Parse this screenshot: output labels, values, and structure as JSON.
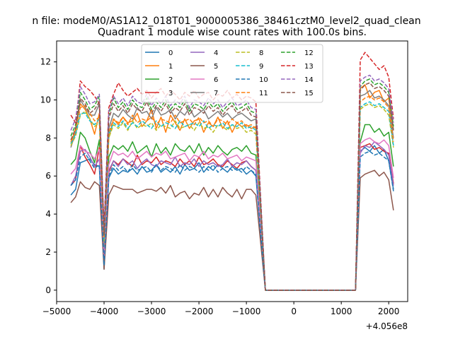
{
  "figure": {
    "suptitle": "n file: modeM0/AS1A12_018T01_9000005386_38461cztM0_level2_quad_clean",
    "offset_text": "+4.056e8"
  },
  "chart_data": {
    "type": "line",
    "title": "Quadrant 1 module wise count rates with 100.0s bins.",
    "xlabel": "",
    "ylabel": "",
    "x_offset": 405600000,
    "xlim": [
      -5000,
      2400
    ],
    "ylim": [
      -0.6,
      13.1
    ],
    "xticks": [
      -5000,
      -4000,
      -3000,
      -2000,
      -1000,
      0,
      1000,
      2000
    ],
    "xtick_labels": [
      "−5000",
      "−4000",
      "−3000",
      "−2000",
      "−1000",
      "0",
      "1000",
      "2000"
    ],
    "yticks": [
      0,
      2,
      4,
      6,
      8,
      10,
      12
    ],
    "ytick_labels": [
      "0",
      "2",
      "4",
      "6",
      "8",
      "10",
      "12"
    ],
    "grid": false,
    "legend_position": "top-center",
    "legend_columns": 4,
    "x": [
      -4700,
      -4600,
      -4500,
      -4400,
      -4300,
      -4200,
      -4100,
      -4000,
      -3900,
      -3800,
      -3700,
      -3600,
      -3500,
      -3400,
      -3300,
      -3200,
      -3100,
      -3000,
      -2900,
      -2800,
      -2700,
      -2600,
      -2500,
      -2400,
      -2300,
      -2200,
      -2100,
      -2000,
      -1900,
      -1800,
      -1700,
      -1600,
      -1500,
      -1400,
      -1300,
      -1200,
      -1100,
      -1000,
      -900,
      -800,
      -700,
      -600,
      -500,
      -400,
      -300,
      -200,
      -100,
      0,
      100,
      200,
      300,
      400,
      500,
      600,
      700,
      800,
      900,
      1000,
      1100,
      1200,
      1300,
      1400,
      1500,
      1600,
      1700,
      1800,
      1900,
      2000,
      2100
    ],
    "series": [
      {
        "name": "0",
        "color": "#1f77b4",
        "dash": "solid",
        "values": [
          5.0,
          5.3,
          6.7,
          6.8,
          6.9,
          6.6,
          6.5,
          1.1,
          5.9,
          6.4,
          6.1,
          6.3,
          6.2,
          6.4,
          6.1,
          6.5,
          6.2,
          6.3,
          6.6,
          6.2,
          6.4,
          6.2,
          6.5,
          6.1,
          6.6,
          6.3,
          6.4,
          6.7,
          6.2,
          6.5,
          6.3,
          6.6,
          6.4,
          6.2,
          6.5,
          6.3,
          6.4,
          6.1,
          6.3,
          6.0,
          3.0,
          0,
          0,
          0,
          0,
          0,
          0,
          0,
          0,
          0,
          0,
          0,
          0,
          0,
          0,
          0,
          0,
          0,
          0,
          0,
          0,
          7.3,
          7.5,
          7.3,
          7.6,
          7.2,
          7.4,
          6.8,
          5.3
        ]
      },
      {
        "name": "1",
        "color": "#ff7f0e",
        "dash": "solid",
        "values": [
          7.7,
          8.5,
          9.8,
          9.5,
          9.0,
          8.2,
          9.3,
          2.7,
          8.0,
          9.0,
          8.7,
          9.1,
          8.8,
          8.9,
          9.3,
          8.6,
          8.9,
          9.5,
          8.5,
          9.1,
          8.3,
          9.2,
          8.8,
          8.4,
          9.0,
          8.5,
          8.9,
          9.0,
          8.3,
          8.8,
          8.6,
          9.1,
          8.5,
          8.9,
          8.3,
          8.8,
          8.6,
          8.7,
          8.5,
          8.6,
          4.4,
          0,
          0,
          0,
          0,
          0,
          0,
          0,
          0,
          0,
          0,
          0,
          0,
          0,
          0,
          0,
          0,
          0,
          0,
          0,
          0,
          10.6,
          10.8,
          10.1,
          10.4,
          10.5,
          9.9,
          10.1,
          8.4
        ]
      },
      {
        "name": "2",
        "color": "#2ca02c",
        "dash": "solid",
        "values": [
          6.6,
          6.9,
          8.3,
          8.0,
          7.3,
          6.7,
          7.9,
          1.9,
          7.0,
          7.6,
          7.4,
          7.6,
          7.3,
          7.8,
          7.2,
          7.4,
          7.6,
          7.0,
          7.7,
          7.2,
          7.5,
          7.1,
          7.7,
          7.4,
          7.3,
          7.6,
          7.2,
          7.7,
          7.1,
          7.5,
          7.2,
          7.6,
          7.3,
          7.1,
          7.4,
          7.5,
          7.3,
          7.6,
          7.2,
          7.1,
          3.6,
          0,
          0,
          0,
          0,
          0,
          0,
          0,
          0,
          0,
          0,
          0,
          0,
          0,
          0,
          0,
          0,
          0,
          0,
          0,
          0,
          7.8,
          8.7,
          8.7,
          8.3,
          8.5,
          8.1,
          8.3,
          6.5
        ]
      },
      {
        "name": "3",
        "color": "#d62728",
        "dash": "solid",
        "values": [
          5.5,
          5.8,
          7.6,
          7.0,
          6.6,
          6.1,
          7.5,
          1.6,
          6.2,
          6.8,
          6.6,
          6.9,
          6.7,
          6.5,
          7.1,
          6.6,
          6.8,
          6.7,
          7.0,
          6.6,
          6.8,
          6.7,
          6.5,
          6.9,
          6.6,
          6.8,
          6.5,
          7.0,
          6.6,
          6.7,
          6.9,
          6.6,
          6.5,
          6.8,
          6.6,
          6.4,
          6.7,
          6.8,
          6.5,
          6.3,
          3.2,
          0,
          0,
          0,
          0,
          0,
          0,
          0,
          0,
          0,
          0,
          0,
          0,
          0,
          0,
          0,
          0,
          0,
          0,
          0,
          0,
          7.5,
          7.6,
          7.7,
          7.4,
          7.5,
          7.3,
          7.2,
          5.6
        ]
      },
      {
        "name": "4",
        "color": "#9467bd",
        "dash": "solid",
        "values": [
          5.5,
          6.0,
          7.3,
          7.4,
          7.0,
          6.5,
          6.9,
          1.5,
          6.3,
          6.8,
          6.5,
          6.9,
          6.6,
          6.8,
          6.4,
          6.7,
          6.9,
          6.6,
          6.5,
          6.8,
          6.7,
          6.6,
          7.0,
          6.5,
          6.7,
          6.6,
          6.9,
          6.5,
          6.8,
          6.6,
          6.7,
          6.5,
          6.6,
          6.9,
          6.5,
          6.7,
          6.6,
          6.8,
          6.5,
          6.3,
          3.1,
          0,
          0,
          0,
          0,
          0,
          0,
          0,
          0,
          0,
          0,
          0,
          0,
          0,
          0,
          0,
          0,
          0,
          0,
          0,
          0,
          7.2,
          7.6,
          7.5,
          7.8,
          7.6,
          7.4,
          7.1,
          5.5
        ]
      },
      {
        "name": "5",
        "color": "#8c564b",
        "dash": "solid",
        "values": [
          4.6,
          4.9,
          5.7,
          5.4,
          5.3,
          5.7,
          5.5,
          1.1,
          5.0,
          5.5,
          5.4,
          5.3,
          5.3,
          5.3,
          5.1,
          5.2,
          5.3,
          5.3,
          5.2,
          5.4,
          5.1,
          5.5,
          4.9,
          5.1,
          5.2,
          4.8,
          5.1,
          5.0,
          5.4,
          4.9,
          5.3,
          4.9,
          5.4,
          5.1,
          4.9,
          5.3,
          4.8,
          5.3,
          5.3,
          5.0,
          2.5,
          0,
          0,
          0,
          0,
          0,
          0,
          0,
          0,
          0,
          0,
          0,
          0,
          0,
          0,
          0,
          0,
          0,
          0,
          0,
          0,
          5.9,
          6.1,
          6.2,
          6.3,
          6.0,
          6.2,
          5.8,
          4.2
        ]
      },
      {
        "name": "6",
        "color": "#e377c2",
        "dash": "solid",
        "values": [
          6.1,
          6.4,
          7.6,
          7.3,
          7.2,
          6.9,
          7.4,
          1.8,
          6.6,
          7.3,
          7.1,
          7.2,
          7.0,
          7.3,
          6.9,
          7.1,
          7.3,
          7.0,
          7.2,
          7.1,
          7.3,
          6.9,
          7.0,
          7.1,
          7.2,
          6.8,
          7.1,
          7.0,
          7.3,
          6.9,
          7.1,
          7.0,
          7.2,
          6.9,
          7.0,
          7.1,
          6.8,
          7.0,
          6.9,
          6.8,
          3.4,
          0,
          0,
          0,
          0,
          0,
          0,
          0,
          0,
          0,
          0,
          0,
          0,
          0,
          0,
          0,
          0,
          0,
          0,
          0,
          0,
          7.7,
          7.9,
          8.0,
          7.8,
          7.7,
          7.9,
          7.6,
          5.9
        ]
      },
      {
        "name": "7",
        "color": "#7f7f7f",
        "dash": "solid",
        "values": [
          7.5,
          8.3,
          10.0,
          9.6,
          9.2,
          9.2,
          9.8,
          2.3,
          8.5,
          9.3,
          9.1,
          9.5,
          9.2,
          9.0,
          9.6,
          9.3,
          9.4,
          9.0,
          9.6,
          9.2,
          9.3,
          9.5,
          9.0,
          9.4,
          9.2,
          9.6,
          9.1,
          9.3,
          9.5,
          9.0,
          9.2,
          9.4,
          9.1,
          9.3,
          9.0,
          9.2,
          9.3,
          9.1,
          8.9,
          9.0,
          4.5,
          0,
          0,
          0,
          0,
          0,
          0,
          0,
          0,
          0,
          0,
          0,
          0,
          0,
          0,
          0,
          0,
          0,
          0,
          0,
          0,
          10.2,
          10.3,
          10.5,
          10.1,
          10.2,
          10.0,
          9.7,
          8.0
        ]
      },
      {
        "name": "8",
        "color": "#bcbd22",
        "dash": "dashed",
        "values": [
          7.6,
          8.1,
          9.2,
          9.4,
          9.0,
          8.6,
          8.8,
          2.6,
          8.0,
          8.7,
          8.5,
          8.8,
          8.4,
          8.9,
          8.5,
          8.7,
          8.6,
          8.8,
          8.4,
          8.7,
          8.6,
          8.5,
          8.9,
          8.5,
          8.6,
          8.7,
          8.4,
          8.8,
          8.5,
          8.6,
          8.3,
          8.7,
          8.6,
          8.4,
          8.7,
          8.5,
          8.6,
          8.3,
          8.4,
          8.2,
          4.1,
          0,
          0,
          0,
          0,
          0,
          0,
          0,
          0,
          0,
          0,
          0,
          0,
          0,
          0,
          0,
          0,
          0,
          0,
          0,
          0,
          9.5,
          9.7,
          9.8,
          9.6,
          9.7,
          9.5,
          9.2,
          7.5
        ]
      },
      {
        "name": "9",
        "color": "#17becf",
        "dash": "dashed",
        "values": [
          7.7,
          8.2,
          9.3,
          9.3,
          8.9,
          8.7,
          9.0,
          2.7,
          8.2,
          8.8,
          8.6,
          8.9,
          8.5,
          8.8,
          8.6,
          8.9,
          8.7,
          8.5,
          8.9,
          8.6,
          8.8,
          8.7,
          8.5,
          8.9,
          8.6,
          8.7,
          8.8,
          8.6,
          8.9,
          8.5,
          8.7,
          8.6,
          8.8,
          8.5,
          8.7,
          8.6,
          8.8,
          8.5,
          8.6,
          8.4,
          4.2,
          0,
          0,
          0,
          0,
          0,
          0,
          0,
          0,
          0,
          0,
          0,
          0,
          0,
          0,
          0,
          0,
          0,
          0,
          0,
          0,
          9.6,
          9.8,
          9.9,
          9.7,
          9.8,
          9.6,
          9.4,
          7.6
        ]
      },
      {
        "name": "10",
        "color": "#1f77b4",
        "dash": "dashed",
        "values": [
          5.5,
          5.8,
          7.0,
          7.2,
          6.8,
          6.4,
          6.6,
          1.3,
          6.0,
          6.6,
          6.3,
          6.5,
          6.2,
          6.6,
          6.3,
          6.4,
          6.5,
          6.2,
          6.6,
          6.3,
          6.5,
          6.4,
          6.2,
          6.6,
          6.3,
          6.5,
          6.4,
          6.2,
          6.5,
          6.3,
          6.6,
          6.2,
          6.4,
          6.5,
          6.3,
          6.4,
          6.2,
          6.5,
          6.3,
          6.1,
          3.0,
          0,
          0,
          0,
          0,
          0,
          0,
          0,
          0,
          0,
          0,
          0,
          0,
          0,
          0,
          0,
          0,
          0,
          0,
          0,
          0,
          7.0,
          7.2,
          7.3,
          7.1,
          7.2,
          7.0,
          6.8,
          5.2
        ]
      },
      {
        "name": "11",
        "color": "#ff7f0e",
        "dash": "dashed",
        "values": [
          7.8,
          8.4,
          9.6,
          9.7,
          9.3,
          8.9,
          9.1,
          2.8,
          8.3,
          9.0,
          8.8,
          9.1,
          8.7,
          9.2,
          8.8,
          9.0,
          8.9,
          9.1,
          8.7,
          9.0,
          8.9,
          8.8,
          9.2,
          8.8,
          8.9,
          9.0,
          8.7,
          9.1,
          8.8,
          8.9,
          8.6,
          9.0,
          8.9,
          8.7,
          9.0,
          8.8,
          8.9,
          8.6,
          8.7,
          8.5,
          4.3,
          0,
          0,
          0,
          0,
          0,
          0,
          0,
          0,
          0,
          0,
          0,
          0,
          0,
          0,
          0,
          0,
          0,
          0,
          0,
          0,
          9.9,
          10.1,
          10.2,
          10.0,
          10.1,
          9.9,
          9.6,
          7.8
        ]
      },
      {
        "name": "12",
        "color": "#2ca02c",
        "dash": "dashed",
        "values": [
          8.1,
          8.7,
          10.4,
          10.0,
          9.5,
          9.7,
          10.2,
          3.0,
          9.2,
          10.1,
          9.6,
          9.9,
          9.5,
          10.0,
          9.7,
          9.6,
          10.1,
          9.5,
          9.9,
          9.6,
          10.0,
          9.5,
          9.8,
          9.6,
          10.0,
          9.4,
          9.8,
          9.7,
          9.5,
          9.9,
          9.6,
          9.8,
          9.4,
          9.7,
          9.9,
          9.5,
          9.6,
          9.8,
          9.4,
          9.3,
          4.6,
          0,
          0,
          0,
          0,
          0,
          0,
          0,
          0,
          0,
          0,
          0,
          0,
          0,
          0,
          0,
          0,
          0,
          0,
          0,
          0,
          10.7,
          11.0,
          11.1,
          10.8,
          10.9,
          10.7,
          10.4,
          8.6
        ]
      },
      {
        "name": "13",
        "color": "#d62728",
        "dash": "dashed",
        "values": [
          9.2,
          8.8,
          11.0,
          10.7,
          10.5,
          10.2,
          9.8,
          3.3,
          9.6,
          10.3,
          10.9,
          10.5,
          10.2,
          10.4,
          10.6,
          10.3,
          10.5,
          10.1,
          10.4,
          10.6,
          10.2,
          10.5,
          10.3,
          10.0,
          10.4,
          10.2,
          10.5,
          10.1,
          10.3,
          10.4,
          10.0,
          10.3,
          10.2,
          10.5,
          10.1,
          10.3,
          10.0,
          10.2,
          10.1,
          9.9,
          4.9,
          0,
          0,
          0,
          0,
          0,
          0,
          0,
          0,
          0,
          0,
          0,
          0,
          0,
          0,
          0,
          0,
          0,
          0,
          0,
          0,
          12.1,
          12.5,
          12.2,
          11.9,
          11.6,
          11.8,
          11.2,
          9.0
        ]
      },
      {
        "name": "14",
        "color": "#9467bd",
        "dash": "dashed",
        "values": [
          8.4,
          9.0,
          10.7,
          10.3,
          9.8,
          9.9,
          10.3,
          3.1,
          9.4,
          10.2,
          9.8,
          10.1,
          9.7,
          10.2,
          9.9,
          9.8,
          10.3,
          9.7,
          10.1,
          9.8,
          10.2,
          9.7,
          10.0,
          9.8,
          10.2,
          9.6,
          10.0,
          9.9,
          9.7,
          10.1,
          9.8,
          10.0,
          9.6,
          9.9,
          10.1,
          9.7,
          9.8,
          10.0,
          9.6,
          9.5,
          4.7,
          0,
          0,
          0,
          0,
          0,
          0,
          0,
          0,
          0,
          0,
          0,
          0,
          0,
          0,
          0,
          0,
          0,
          0,
          0,
          0,
          11.0,
          11.2,
          11.3,
          11.0,
          11.1,
          10.9,
          10.6,
          8.8
        ]
      },
      {
        "name": "15",
        "color": "#8c564b",
        "dash": "dashed",
        "values": [
          7.9,
          8.5,
          10.1,
          9.8,
          9.3,
          9.5,
          9.9,
          2.9,
          9.0,
          9.8,
          9.4,
          9.7,
          9.3,
          9.8,
          9.5,
          9.4,
          9.9,
          9.3,
          9.7,
          9.4,
          9.8,
          9.3,
          9.6,
          9.4,
          9.8,
          9.2,
          9.6,
          9.5,
          9.3,
          9.7,
          9.4,
          9.6,
          9.2,
          9.5,
          9.7,
          9.3,
          9.4,
          9.6,
          9.2,
          9.1,
          4.5,
          0,
          0,
          0,
          0,
          0,
          0,
          0,
          0,
          0,
          0,
          0,
          0,
          0,
          0,
          0,
          0,
          0,
          0,
          0,
          0,
          10.5,
          10.8,
          10.9,
          10.6,
          10.7,
          10.5,
          10.2,
          8.4
        ]
      }
    ]
  }
}
